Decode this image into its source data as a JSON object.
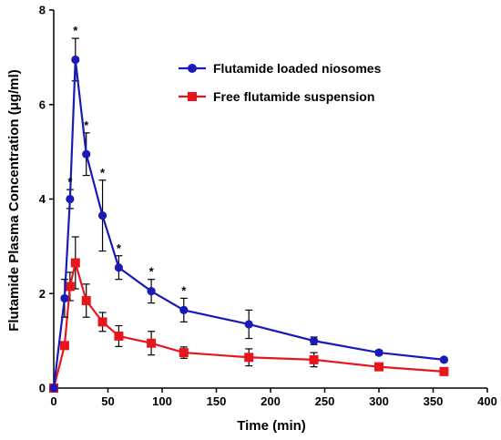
{
  "chart_data": {
    "type": "line",
    "title": "",
    "xlabel": "Time (min)",
    "ylabel": "Flutamide Plasma Concentration (μg/ml)",
    "xlim": [
      0,
      400
    ],
    "ylim": [
      0,
      8
    ],
    "xticks": [
      0,
      50,
      100,
      150,
      200,
      250,
      300,
      350,
      400
    ],
    "yticks": [
      0,
      2,
      4,
      6,
      8
    ],
    "grid": false,
    "legend_position": "upper-right",
    "significance_marker": "*",
    "series": [
      {
        "name": "Flutamide loaded niosomes",
        "color": "#1a1ab8",
        "marker": "circle",
        "x": [
          0,
          10,
          15,
          20,
          30,
          45,
          60,
          90,
          120,
          180,
          240,
          300,
          360
        ],
        "y": [
          0,
          1.9,
          4.0,
          6.95,
          4.95,
          3.65,
          2.55,
          2.05,
          1.65,
          1.35,
          1.0,
          0.75,
          0.6
        ],
        "err": [
          0,
          0.4,
          0.2,
          0.45,
          0.45,
          0.75,
          0.25,
          0.25,
          0.25,
          0.3,
          0.08,
          0.05,
          0.04
        ],
        "significant": [
          false,
          false,
          true,
          true,
          true,
          true,
          true,
          true,
          true,
          false,
          false,
          false,
          false
        ]
      },
      {
        "name": "Free flutamide suspension",
        "color": "#e8161c",
        "marker": "square",
        "x": [
          0,
          10,
          15,
          20,
          30,
          45,
          60,
          90,
          120,
          180,
          240,
          300,
          360
        ],
        "y": [
          0,
          0.9,
          2.15,
          2.65,
          1.85,
          1.4,
          1.1,
          0.95,
          0.75,
          0.65,
          0.6,
          0.45,
          0.35
        ],
        "err": [
          0,
          0.05,
          0.3,
          0.55,
          0.35,
          0.2,
          0.22,
          0.25,
          0.12,
          0.18,
          0.15,
          0.06,
          0.06
        ],
        "significant": [
          false,
          false,
          false,
          false,
          false,
          false,
          false,
          false,
          false,
          false,
          false,
          false,
          false
        ]
      }
    ]
  }
}
